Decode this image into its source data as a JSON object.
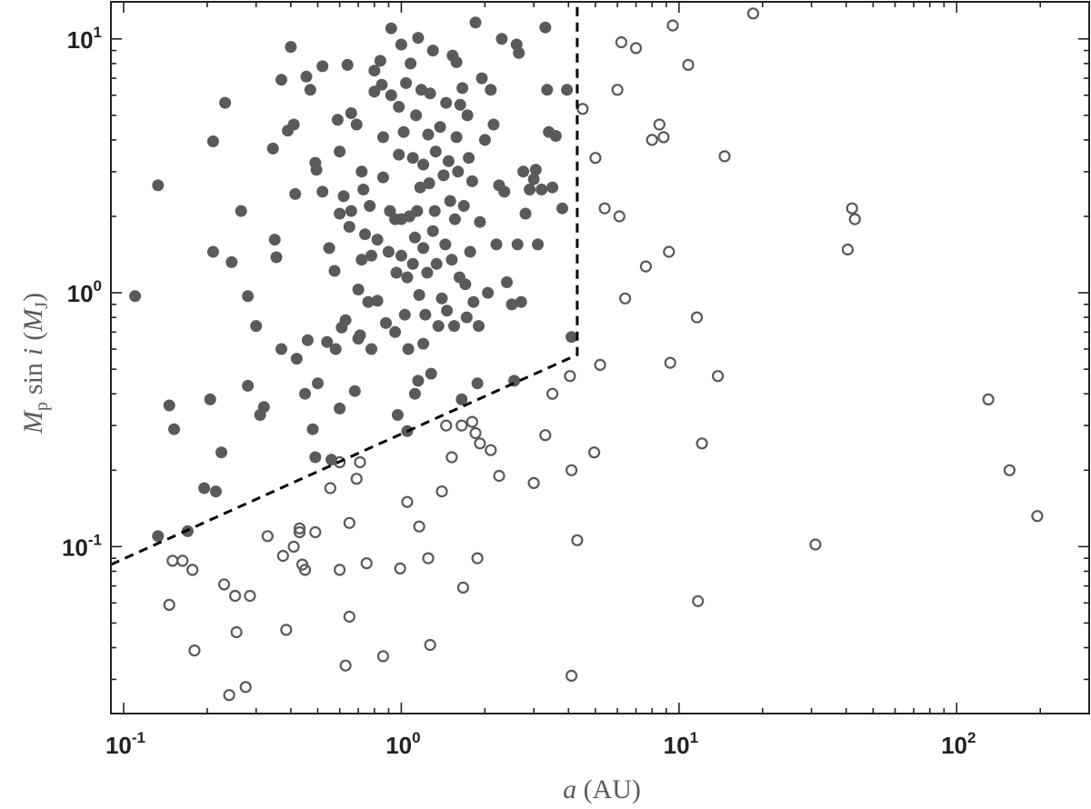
{
  "chart_data": {
    "type": "scatter",
    "title": "",
    "xlabel": {
      "symbol": "a",
      "unit": "(AU)"
    },
    "ylabel": {
      "symbol": "M",
      "subscript": "p",
      "func": "sin",
      "var": "i",
      "unit_open": "(",
      "unit_symbol": "M",
      "unit_subscript": "J",
      "unit_close": ")"
    },
    "xscale": "log",
    "yscale": "log",
    "xlim": [
      0.09,
      300
    ],
    "ylim": [
      0.022,
      14
    ],
    "x_ticks": [
      {
        "base": "10",
        "exp": "-1"
      },
      {
        "base": "10",
        "exp": "0"
      },
      {
        "base": "10",
        "exp": "1"
      },
      {
        "base": "10",
        "exp": "2"
      }
    ],
    "y_ticks": [
      {
        "base": "10",
        "exp": "-1"
      },
      {
        "base": "10",
        "exp": "0"
      },
      {
        "base": "10",
        "exp": "1"
      }
    ],
    "grid": false,
    "legend": "none",
    "colors": {
      "marker": "#5a5a5a",
      "boundary": "#000000",
      "axes": "#222222"
    },
    "boundary_line": {
      "style": "dashed",
      "points": [
        [
          0.09,
          0.085
        ],
        [
          4.3,
          0.57
        ],
        [
          4.3,
          14
        ]
      ]
    },
    "series": [
      {
        "marker": "filled-circle",
        "points": [
          [
            0.11,
            0.97
          ],
          [
            0.133,
            2.65
          ],
          [
            0.133,
            0.11
          ],
          [
            0.146,
            0.36
          ],
          [
            0.152,
            0.29
          ],
          [
            0.17,
            0.115
          ],
          [
            0.195,
            0.17
          ],
          [
            0.205,
            0.38
          ],
          [
            0.21,
            1.45
          ],
          [
            0.21,
            3.95
          ],
          [
            0.215,
            0.165
          ],
          [
            0.225,
            0.235
          ],
          [
            0.232,
            5.6
          ],
          [
            0.245,
            1.32
          ],
          [
            0.265,
            2.1
          ],
          [
            0.28,
            0.97
          ],
          [
            0.28,
            0.43
          ],
          [
            0.3,
            0.74
          ],
          [
            0.31,
            0.33
          ],
          [
            0.32,
            0.355
          ],
          [
            0.345,
            3.7
          ],
          [
            0.35,
            1.62
          ],
          [
            0.355,
            1.38
          ],
          [
            0.37,
            6.9
          ],
          [
            0.37,
            0.6
          ],
          [
            0.39,
            4.35
          ],
          [
            0.4,
            9.3
          ],
          [
            0.41,
            4.6
          ],
          [
            0.415,
            2.45
          ],
          [
            0.42,
            0.55
          ],
          [
            0.45,
            0.4
          ],
          [
            0.455,
            7.1
          ],
          [
            0.46,
            0.65
          ],
          [
            0.47,
            6.3
          ],
          [
            0.48,
            0.29
          ],
          [
            0.49,
            0.225
          ],
          [
            0.49,
            3.25
          ],
          [
            0.495,
            3.05
          ],
          [
            0.5,
            0.44
          ],
          [
            0.52,
            7.8
          ],
          [
            0.52,
            2.5
          ],
          [
            0.54,
            0.64
          ],
          [
            0.55,
            1.5
          ],
          [
            0.56,
            0.22
          ],
          [
            0.575,
            1.22
          ],
          [
            0.58,
            0.6
          ],
          [
            0.59,
            4.8
          ],
          [
            0.6,
            3.6
          ],
          [
            0.6,
            2.05
          ],
          [
            0.6,
            0.35
          ],
          [
            0.61,
            0.73
          ],
          [
            0.62,
            2.4
          ],
          [
            0.63,
            0.78
          ],
          [
            0.64,
            7.9
          ],
          [
            0.65,
            1.82
          ],
          [
            0.66,
            2.1
          ],
          [
            0.66,
            5.1
          ],
          [
            0.68,
            0.41
          ],
          [
            0.69,
            4.6
          ],
          [
            0.7,
            0.66
          ],
          [
            0.7,
            1.03
          ],
          [
            0.71,
            0.68
          ],
          [
            0.72,
            3.0
          ],
          [
            0.72,
            1.35
          ],
          [
            0.73,
            2.55
          ],
          [
            0.74,
            1.7
          ],
          [
            0.76,
            0.92
          ],
          [
            0.77,
            2.2
          ],
          [
            0.78,
            1.4
          ],
          [
            0.78,
            0.6
          ],
          [
            0.8,
            6.2
          ],
          [
            0.8,
            7.5
          ],
          [
            0.82,
            0.93
          ],
          [
            0.82,
            1.62
          ],
          [
            0.84,
            8.2
          ],
          [
            0.85,
            6.6
          ],
          [
            0.86,
            2.85
          ],
          [
            0.86,
            4.1
          ],
          [
            0.88,
            0.76
          ],
          [
            0.9,
            1.45
          ],
          [
            0.91,
            2.1
          ],
          [
            0.92,
            11.0
          ],
          [
            0.92,
            6.0
          ],
          [
            0.95,
            1.95
          ],
          [
            0.95,
            0.7
          ],
          [
            0.96,
            1.2
          ],
          [
            0.97,
            0.33
          ],
          [
            0.98,
            3.5
          ],
          [
            0.98,
            5.4
          ],
          [
            1.0,
            9.5
          ],
          [
            1.0,
            1.95
          ],
          [
            1.0,
            1.4
          ],
          [
            1.02,
            4.3
          ],
          [
            1.03,
            0.82
          ],
          [
            1.04,
            6.7
          ],
          [
            1.05,
            1.15
          ],
          [
            1.05,
            0.285
          ],
          [
            1.06,
            0.6
          ],
          [
            1.07,
            2.0
          ],
          [
            1.08,
            8.0
          ],
          [
            1.1,
            3.4
          ],
          [
            1.1,
            1.3
          ],
          [
            1.12,
            1.65
          ],
          [
            1.12,
            0.4
          ],
          [
            1.13,
            5.0
          ],
          [
            1.14,
            2.1
          ],
          [
            1.15,
            10.1
          ],
          [
            1.15,
            0.45
          ],
          [
            1.16,
            0.98
          ],
          [
            1.17,
            2.6
          ],
          [
            1.18,
            6.3
          ],
          [
            1.2,
            1.5
          ],
          [
            1.2,
            3.2
          ],
          [
            1.2,
            0.63
          ],
          [
            1.22,
            0.82
          ],
          [
            1.24,
            1.2
          ],
          [
            1.25,
            4.2
          ],
          [
            1.26,
            2.7
          ],
          [
            1.27,
            6.1
          ],
          [
            1.28,
            0.48
          ],
          [
            1.3,
            9.0
          ],
          [
            1.3,
            1.75
          ],
          [
            1.32,
            2.1
          ],
          [
            1.33,
            3.6
          ],
          [
            1.34,
            1.3
          ],
          [
            1.36,
            0.74
          ],
          [
            1.38,
            4.5
          ],
          [
            1.4,
            0.95
          ],
          [
            1.42,
            2.9
          ],
          [
            1.44,
            1.55
          ],
          [
            1.45,
            5.6
          ],
          [
            1.46,
            0.85
          ],
          [
            1.48,
            3.3
          ],
          [
            1.5,
            2.3
          ],
          [
            1.52,
            1.35
          ],
          [
            1.53,
            8.6
          ],
          [
            1.55,
            0.74
          ],
          [
            1.56,
            1.95
          ],
          [
            1.58,
            8.1
          ],
          [
            1.58,
            4.1
          ],
          [
            1.6,
            3.0
          ],
          [
            1.62,
            1.15
          ],
          [
            1.63,
            5.5
          ],
          [
            1.65,
            0.38
          ],
          [
            1.66,
            6.4
          ],
          [
            1.68,
            2.2
          ],
          [
            1.7,
            1.08
          ],
          [
            1.72,
            0.8
          ],
          [
            1.73,
            5.0
          ],
          [
            1.75,
            3.4
          ],
          [
            1.77,
            1.45
          ],
          [
            1.8,
            2.75
          ],
          [
            1.82,
            0.92
          ],
          [
            1.85,
            11.6
          ],
          [
            1.88,
            0.44
          ],
          [
            1.9,
            0.74
          ],
          [
            1.92,
            1.9
          ],
          [
            1.95,
            7.0
          ],
          [
            2.0,
            4.0
          ],
          [
            2.05,
            1.0
          ],
          [
            2.1,
            6.3
          ],
          [
            2.15,
            4.6
          ],
          [
            2.2,
            1.55
          ],
          [
            2.25,
            2.65
          ],
          [
            2.3,
            10.0
          ],
          [
            2.35,
            2.5
          ],
          [
            2.4,
            1.1
          ],
          [
            2.5,
            0.9
          ],
          [
            2.55,
            0.45
          ],
          [
            2.6,
            9.5
          ],
          [
            2.62,
            1.55
          ],
          [
            2.65,
            8.8
          ],
          [
            2.7,
            0.92
          ],
          [
            2.75,
            3.0
          ],
          [
            2.8,
            2.05
          ],
          [
            2.9,
            2.55
          ],
          [
            3.0,
            2.8
          ],
          [
            3.05,
            3.05
          ],
          [
            3.1,
            1.55
          ],
          [
            3.2,
            2.55
          ],
          [
            3.3,
            11.1
          ],
          [
            3.35,
            6.3
          ],
          [
            3.4,
            4.3
          ],
          [
            3.5,
            2.6
          ],
          [
            3.6,
            4.15
          ],
          [
            3.8,
            2.15
          ],
          [
            3.95,
            6.3
          ],
          [
            4.1,
            0.67
          ]
        ]
      },
      {
        "marker": "open-circle",
        "points": [
          [
            0.146,
            0.059
          ],
          [
            0.15,
            0.088
          ],
          [
            0.163,
            0.088
          ],
          [
            0.177,
            0.081
          ],
          [
            0.18,
            0.039
          ],
          [
            0.23,
            0.071
          ],
          [
            0.24,
            0.026
          ],
          [
            0.252,
            0.064
          ],
          [
            0.255,
            0.046
          ],
          [
            0.275,
            0.028
          ],
          [
            0.285,
            0.064
          ],
          [
            0.33,
            0.11
          ],
          [
            0.375,
            0.092
          ],
          [
            0.385,
            0.047
          ],
          [
            0.41,
            0.1
          ],
          [
            0.43,
            0.118
          ],
          [
            0.43,
            0.114
          ],
          [
            0.44,
            0.085
          ],
          [
            0.45,
            0.081
          ],
          [
            0.49,
            0.114
          ],
          [
            0.555,
            0.17
          ],
          [
            0.6,
            0.215
          ],
          [
            0.6,
            0.081
          ],
          [
            0.63,
            0.034
          ],
          [
            0.65,
            0.124
          ],
          [
            0.65,
            0.053
          ],
          [
            0.69,
            0.185
          ],
          [
            0.71,
            0.215
          ],
          [
            0.75,
            0.086
          ],
          [
            0.86,
            0.037
          ],
          [
            0.99,
            0.082
          ],
          [
            1.05,
            0.15
          ],
          [
            1.16,
            0.12
          ],
          [
            1.25,
            0.09
          ],
          [
            1.27,
            0.041
          ],
          [
            1.4,
            0.165
          ],
          [
            1.45,
            0.3
          ],
          [
            1.52,
            0.225
          ],
          [
            1.65,
            0.3
          ],
          [
            1.67,
            0.069
          ],
          [
            1.8,
            0.31
          ],
          [
            1.85,
            0.28
          ],
          [
            1.88,
            0.09
          ],
          [
            1.92,
            0.255
          ],
          [
            2.1,
            0.24
          ],
          [
            2.25,
            0.19
          ],
          [
            3.0,
            0.178
          ],
          [
            3.3,
            0.275
          ],
          [
            3.5,
            0.4
          ],
          [
            4.05,
            0.47
          ],
          [
            4.1,
            0.2
          ],
          [
            4.1,
            0.031
          ],
          [
            4.3,
            0.106
          ],
          [
            4.5,
            5.3
          ],
          [
            4.95,
            0.235
          ],
          [
            5.0,
            3.4
          ],
          [
            5.2,
            0.52
          ],
          [
            5.4,
            2.15
          ],
          [
            6.0,
            6.3
          ],
          [
            6.1,
            2.0
          ],
          [
            6.2,
            9.7
          ],
          [
            6.4,
            0.95
          ],
          [
            7.0,
            9.2
          ],
          [
            7.6,
            1.27
          ],
          [
            8.0,
            4.0
          ],
          [
            8.5,
            4.6
          ],
          [
            8.8,
            4.1
          ],
          [
            9.2,
            1.45
          ],
          [
            9.3,
            0.53
          ],
          [
            9.5,
            11.3
          ],
          [
            10.8,
            7.9
          ],
          [
            11.6,
            0.8
          ],
          [
            11.7,
            0.061
          ],
          [
            12.1,
            0.255
          ],
          [
            13.8,
            0.47
          ],
          [
            14.6,
            3.45
          ],
          [
            18.5,
            12.6
          ],
          [
            31.0,
            0.102
          ],
          [
            40.5,
            1.48
          ],
          [
            42.0,
            2.15
          ],
          [
            43.0,
            1.95
          ],
          [
            130.0,
            0.38
          ],
          [
            155.0,
            0.2
          ],
          [
            195.0,
            0.132
          ]
        ]
      }
    ]
  }
}
